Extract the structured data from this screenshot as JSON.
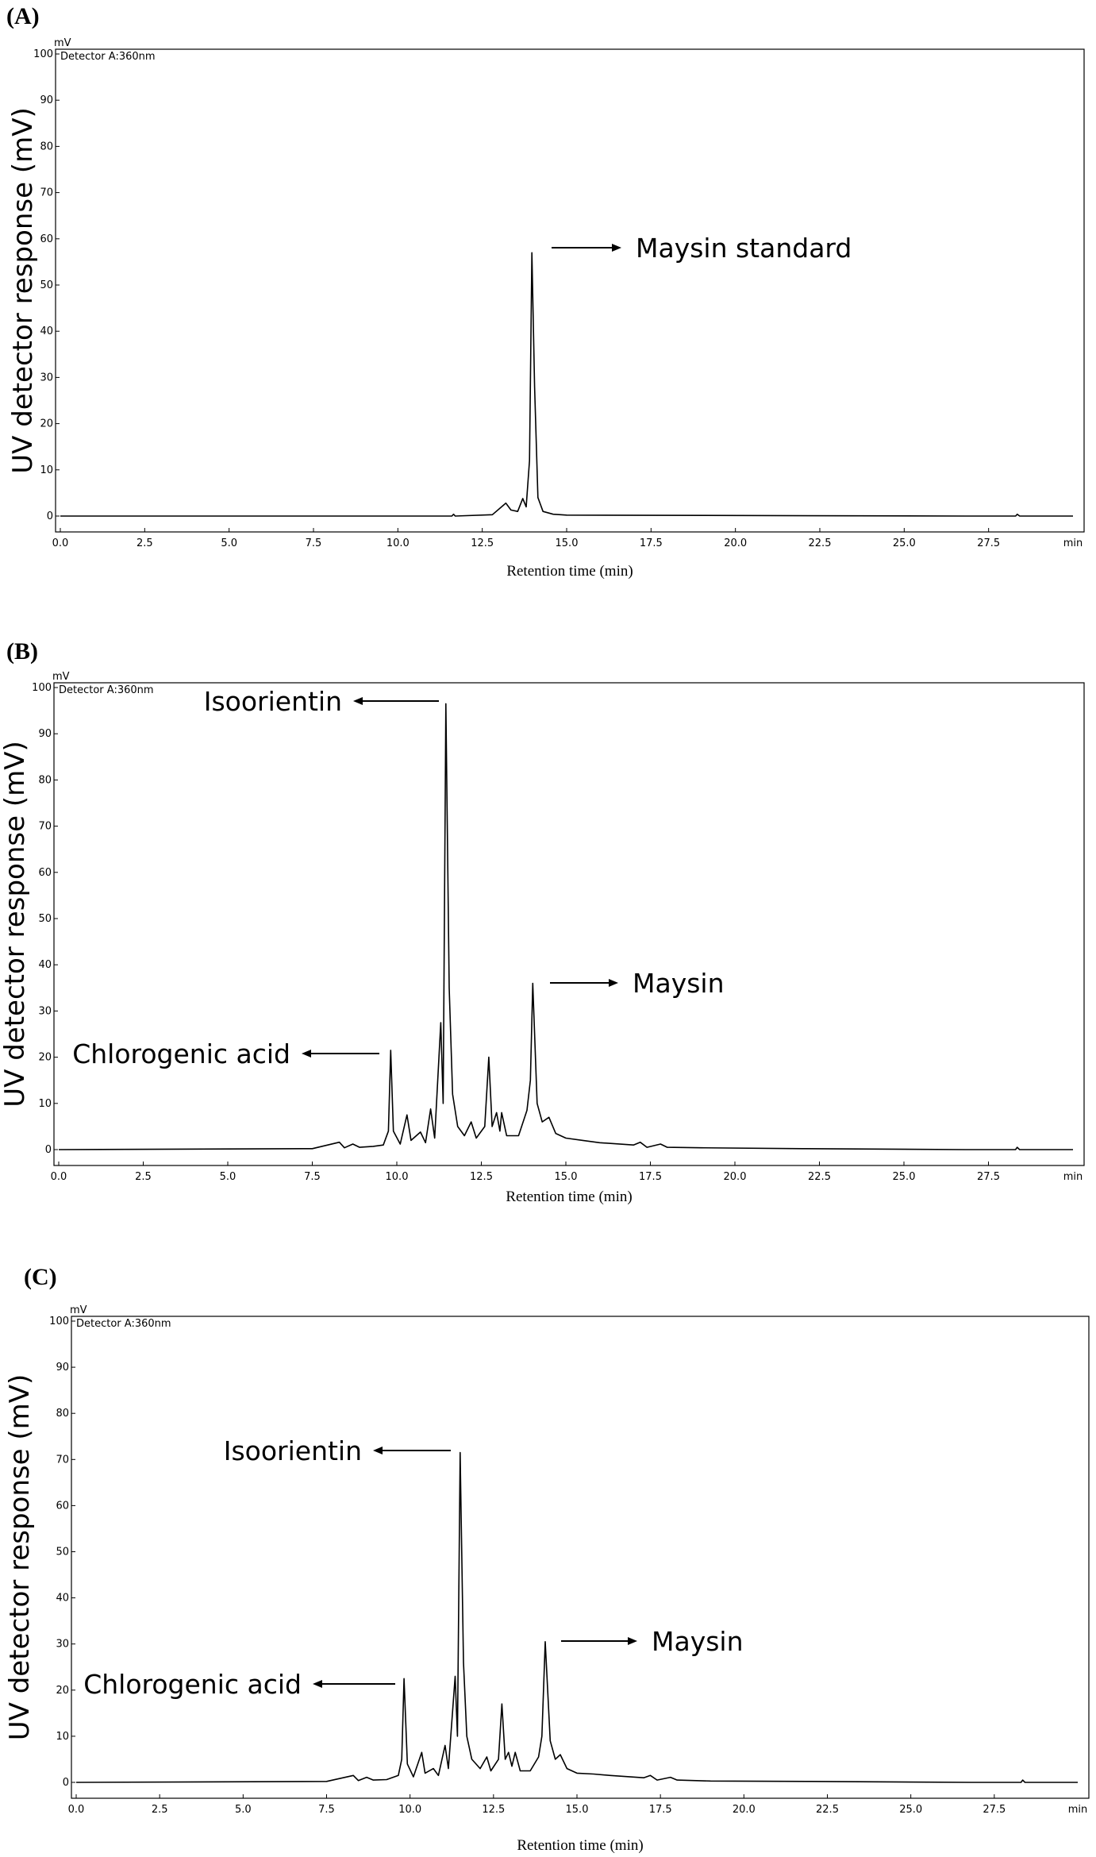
{
  "chart_data": [
    {
      "type": "line",
      "panel_label": "(A)",
      "detector": "Detector A:360nm",
      "y_unit": "mV",
      "x_unit": "min",
      "ylabel": "UV detector response (mV)",
      "xlabel": "Retention time (min)",
      "xlim": [
        0,
        30
      ],
      "ylim": [
        0,
        100
      ],
      "x_ticks": [
        "0.0",
        "2.5",
        "5.0",
        "7.5",
        "10.0",
        "12.5",
        "15.0",
        "17.5",
        "20.0",
        "22.5",
        "25.0",
        "27.5"
      ],
      "y_ticks": [
        "0",
        "10",
        "20",
        "30",
        "40",
        "50",
        "60",
        "70",
        "80",
        "90",
        "100"
      ],
      "baseline": [
        [
          0,
          0
        ],
        [
          11.6,
          0
        ],
        [
          11.65,
          0.4
        ],
        [
          11.7,
          0
        ],
        [
          12.8,
          0.3
        ],
        [
          13.2,
          2.8
        ],
        [
          13.35,
          1.3
        ],
        [
          13.55,
          1.0
        ],
        [
          13.7,
          3.8
        ],
        [
          13.8,
          2.0
        ],
        [
          13.9,
          12
        ],
        [
          13.97,
          57
        ],
        [
          14.05,
          28
        ],
        [
          14.15,
          4
        ],
        [
          14.3,
          1
        ],
        [
          14.6,
          0.4
        ],
        [
          15,
          0.2
        ],
        [
          26.8,
          0
        ],
        [
          28.3,
          0
        ],
        [
          28.35,
          0.4
        ],
        [
          28.42,
          0
        ],
        [
          30,
          0
        ]
      ],
      "annotations": [
        {
          "text": "Maysin standard",
          "x": 14.3,
          "y": 57,
          "direction": "right"
        }
      ]
    },
    {
      "type": "line",
      "panel_label": "(B)",
      "detector": "Detector A:360nm",
      "y_unit": "mV",
      "x_unit": "min",
      "ylabel": "UV detector response (mV)",
      "xlabel": "Retention time (min)",
      "xlim": [
        0,
        30
      ],
      "ylim": [
        0,
        100
      ],
      "x_ticks": [
        "0.0",
        "2.5",
        "5.0",
        "7.5",
        "10.0",
        "12.5",
        "15.0",
        "17.5",
        "20.0",
        "22.5",
        "25.0",
        "27.5"
      ],
      "y_ticks": [
        "0",
        "10",
        "20",
        "30",
        "40",
        "50",
        "60",
        "70",
        "80",
        "90",
        "100"
      ],
      "baseline": [
        [
          0,
          0
        ],
        [
          7.5,
          0.2
        ],
        [
          8.3,
          1.6
        ],
        [
          8.45,
          0.4
        ],
        [
          8.7,
          1.2
        ],
        [
          8.9,
          0.5
        ],
        [
          9.3,
          0.7
        ],
        [
          9.6,
          1.0
        ],
        [
          9.75,
          4
        ],
        [
          9.82,
          21.5
        ],
        [
          9.9,
          4
        ],
        [
          10.1,
          1.2
        ],
        [
          10.3,
          7.5
        ],
        [
          10.42,
          2
        ],
        [
          10.7,
          3.8
        ],
        [
          10.85,
          1.5
        ],
        [
          11.0,
          8.8
        ],
        [
          11.12,
          2.5
        ],
        [
          11.3,
          27.5
        ],
        [
          11.37,
          10
        ],
        [
          11.45,
          96.5
        ],
        [
          11.55,
          35
        ],
        [
          11.65,
          12
        ],
        [
          11.8,
          5
        ],
        [
          12.0,
          3
        ],
        [
          12.2,
          6
        ],
        [
          12.35,
          2.5
        ],
        [
          12.6,
          5
        ],
        [
          12.72,
          20
        ],
        [
          12.82,
          5
        ],
        [
          12.95,
          8
        ],
        [
          13.05,
          4
        ],
        [
          13.1,
          8
        ],
        [
          13.25,
          3
        ],
        [
          13.6,
          3
        ],
        [
          13.85,
          8.5
        ],
        [
          13.95,
          15
        ],
        [
          14.02,
          36
        ],
        [
          14.15,
          10
        ],
        [
          14.3,
          6
        ],
        [
          14.5,
          7
        ],
        [
          14.7,
          3.5
        ],
        [
          15.0,
          2.5
        ],
        [
          15.5,
          2
        ],
        [
          16.0,
          1.5
        ],
        [
          17.0,
          1
        ],
        [
          17.2,
          1.6
        ],
        [
          17.4,
          0.5
        ],
        [
          17.8,
          1.2
        ],
        [
          18.0,
          0.5
        ],
        [
          19,
          0.4
        ],
        [
          22,
          0.2
        ],
        [
          26.8,
          0
        ],
        [
          28.3,
          0
        ],
        [
          28.35,
          0.5
        ],
        [
          28.42,
          0
        ],
        [
          30,
          0
        ]
      ],
      "annotations": [
        {
          "text": "Isoorientin",
          "x": 11.2,
          "y": 96,
          "direction": "left"
        },
        {
          "text": "Maysin",
          "x": 14.3,
          "y": 36,
          "direction": "right"
        },
        {
          "text": "Chlorogenic acid",
          "x": 9.5,
          "y": 20,
          "direction": "left"
        }
      ]
    },
    {
      "type": "line",
      "panel_label": "(C)",
      "detector": "Detector A:360nm",
      "y_unit": "mV",
      "x_unit": "min",
      "ylabel": "UV detector response (mV)",
      "xlabel": "Retention time (min)",
      "xlim": [
        0,
        30
      ],
      "ylim": [
        0,
        100
      ],
      "x_ticks": [
        "0.0",
        "2.5",
        "5.0",
        "7.5",
        "10.0",
        "12.5",
        "15.0",
        "17.5",
        "20.0",
        "22.5",
        "25.0",
        "27.5"
      ],
      "y_ticks": [
        "0",
        "10",
        "20",
        "30",
        "40",
        "50",
        "60",
        "70",
        "80",
        "90",
        "100"
      ],
      "baseline": [
        [
          0,
          0
        ],
        [
          7.5,
          0.2
        ],
        [
          8.3,
          1.5
        ],
        [
          8.45,
          0.4
        ],
        [
          8.7,
          1.1
        ],
        [
          8.9,
          0.5
        ],
        [
          9.3,
          0.6
        ],
        [
          9.65,
          1.5
        ],
        [
          9.75,
          5
        ],
        [
          9.82,
          22.5
        ],
        [
          9.92,
          4
        ],
        [
          10.1,
          1.2
        ],
        [
          10.35,
          6.5
        ],
        [
          10.45,
          2
        ],
        [
          10.7,
          3
        ],
        [
          10.85,
          1.5
        ],
        [
          11.05,
          8
        ],
        [
          11.15,
          3
        ],
        [
          11.35,
          23
        ],
        [
          11.42,
          10
        ],
        [
          11.5,
          71.5
        ],
        [
          11.6,
          26
        ],
        [
          11.7,
          10
        ],
        [
          11.85,
          5
        ],
        [
          12.1,
          3
        ],
        [
          12.3,
          5.5
        ],
        [
          12.42,
          2.5
        ],
        [
          12.65,
          5
        ],
        [
          12.75,
          17
        ],
        [
          12.85,
          5
        ],
        [
          12.95,
          6.5
        ],
        [
          13.05,
          3.5
        ],
        [
          13.15,
          6.5
        ],
        [
          13.3,
          2.5
        ],
        [
          13.6,
          2.5
        ],
        [
          13.85,
          5.5
        ],
        [
          13.95,
          10
        ],
        [
          14.05,
          30.5
        ],
        [
          14.2,
          9
        ],
        [
          14.35,
          5
        ],
        [
          14.5,
          6
        ],
        [
          14.7,
          3
        ],
        [
          15.0,
          2
        ],
        [
          15.5,
          1.8
        ],
        [
          16.0,
          1.5
        ],
        [
          17.0,
          1
        ],
        [
          17.2,
          1.5
        ],
        [
          17.4,
          0.5
        ],
        [
          17.8,
          1.1
        ],
        [
          18.0,
          0.5
        ],
        [
          19,
          0.3
        ],
        [
          22,
          0.2
        ],
        [
          26.8,
          0
        ],
        [
          28.3,
          0
        ],
        [
          28.35,
          0.5
        ],
        [
          28.42,
          0
        ],
        [
          30,
          0
        ]
      ],
      "annotations": [
        {
          "text": "Isoorientin",
          "x": 11.2,
          "y": 71,
          "direction": "left"
        },
        {
          "text": "Maysin",
          "x": 14.3,
          "y": 30,
          "direction": "right"
        },
        {
          "text": "Chlorogenic acid",
          "x": 9.6,
          "y": 22,
          "direction": "left"
        }
      ]
    }
  ]
}
